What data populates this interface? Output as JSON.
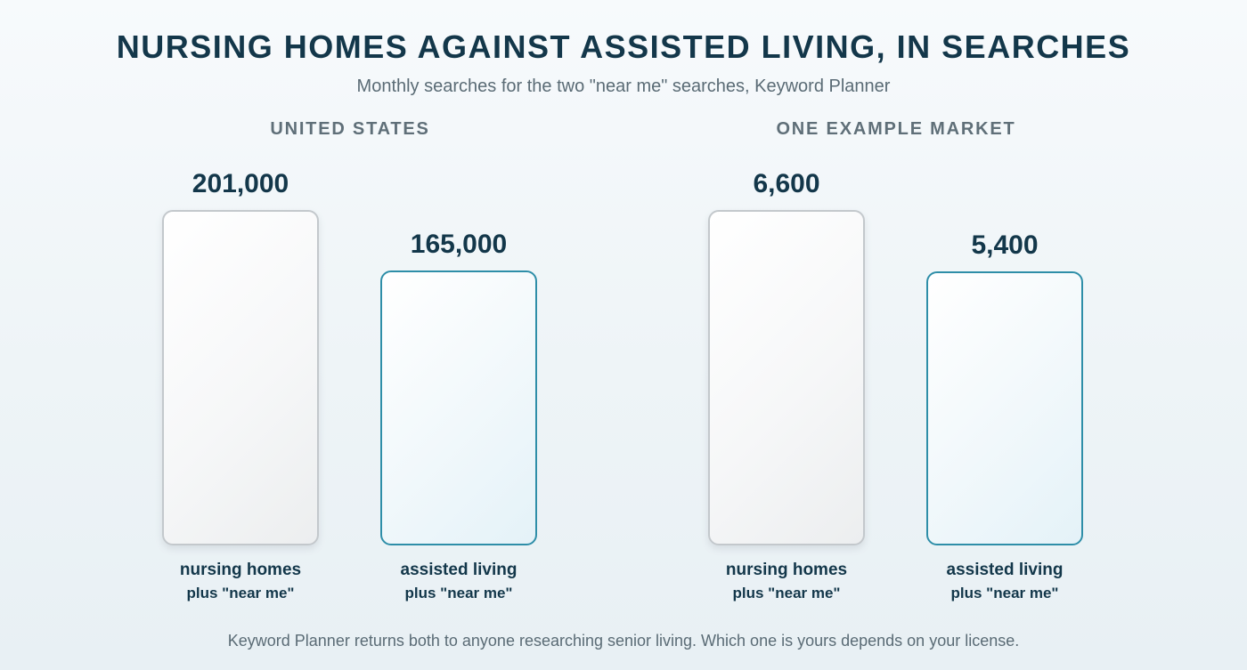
{
  "title": "NURSING HOMES AGAINST ASSISTED LIVING, IN SEARCHES",
  "subtitle": "Monthly searches for the two \"near me\" searches, Keyword Planner",
  "footnote": "Keyword Planner returns both to anyone researching senior living. Which one is yours depends on your license.",
  "colors": {
    "nursing_border": "#c3c8cc",
    "assisted_border": "#2e8ea8",
    "text": "#13374a"
  },
  "chart_data": [
    {
      "type": "bar",
      "title": "UNITED STATES",
      "categories": [
        {
          "line1": "nursing homes",
          "line2": "plus \"near me\""
        },
        {
          "line1": "assisted living",
          "line2": "plus \"near me\""
        }
      ],
      "values": [
        201000,
        165000
      ],
      "value_labels": [
        "201,000",
        "165,000"
      ]
    },
    {
      "type": "bar",
      "title": "ONE EXAMPLE MARKET",
      "categories": [
        {
          "line1": "nursing homes",
          "line2": "plus \"near me\""
        },
        {
          "line1": "assisted living",
          "line2": "plus \"near me\""
        }
      ],
      "values": [
        6600,
        5400
      ],
      "value_labels": [
        "6,600",
        "5,400"
      ]
    }
  ]
}
